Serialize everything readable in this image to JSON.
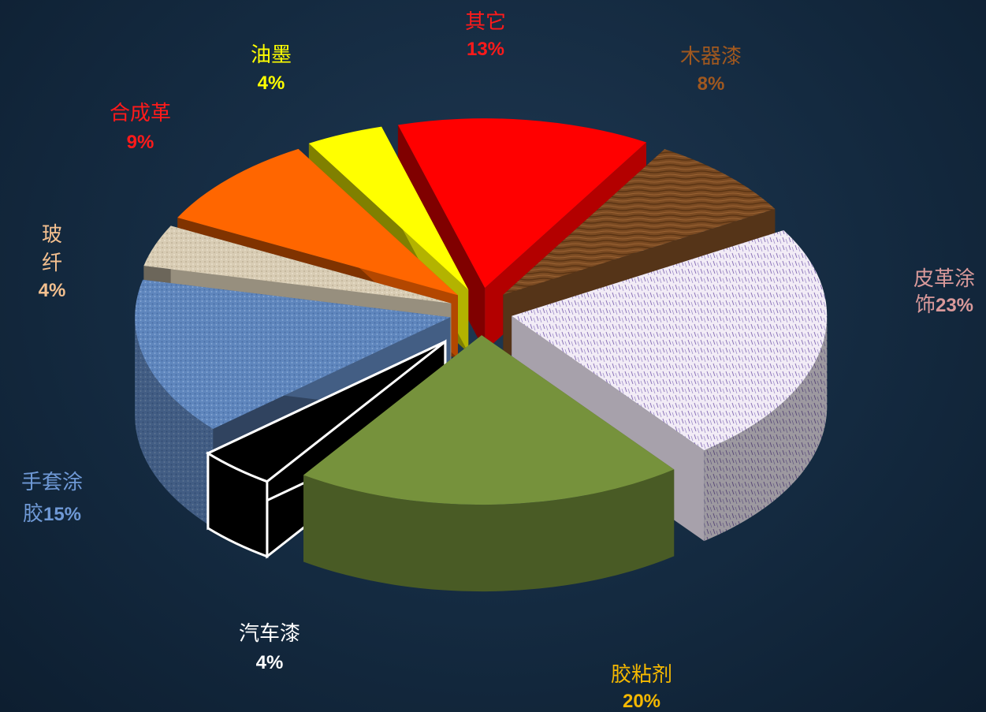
{
  "chart_data": {
    "type": "pie",
    "three_d": true,
    "exploded": true,
    "legend": "none",
    "slices": [
      {
        "label": "其它",
        "value": 13,
        "pct_text": "13%",
        "color": "#ff0000",
        "label_color": "#ff1a1a"
      },
      {
        "label": "木器漆",
        "value": 8,
        "pct_text": "8%",
        "color": "#7a4a22",
        "label_color": "#a0581f"
      },
      {
        "label": "皮革涂饰",
        "label_line1": "皮革涂",
        "label_line2": "饰",
        "value": 23,
        "pct_text": "23%",
        "color": "#efe6f4",
        "label_color": "#d9999a"
      },
      {
        "label": "胶粘剂",
        "value": 20,
        "pct_text": "20%",
        "color": "#76923c",
        "label_color": "#f5b800"
      },
      {
        "label": "汽车漆",
        "value": 4,
        "pct_text": "4%",
        "color": "#000000",
        "label_color": "#ffffff"
      },
      {
        "label": "手套涂胶",
        "label_line1": "手套涂",
        "label_line2": "胶",
        "value": 15,
        "pct_text": "15%",
        "color": "#5f86bd",
        "label_color": "#6f99d6"
      },
      {
        "label": "玻纤",
        "label_line1": "玻",
        "label_line2": "纤",
        "value": 4,
        "pct_text": "4%",
        "color": "#d8ccb4",
        "label_color": "#f4c08f"
      },
      {
        "label": "合成革",
        "value": 9,
        "pct_text": "9%",
        "color": "#ff6600",
        "label_color": "#ff1a1a"
      },
      {
        "label": "油墨",
        "value": 4,
        "pct_text": "4%",
        "color": "#ffff00",
        "label_color": "#ffff00"
      }
    ]
  }
}
